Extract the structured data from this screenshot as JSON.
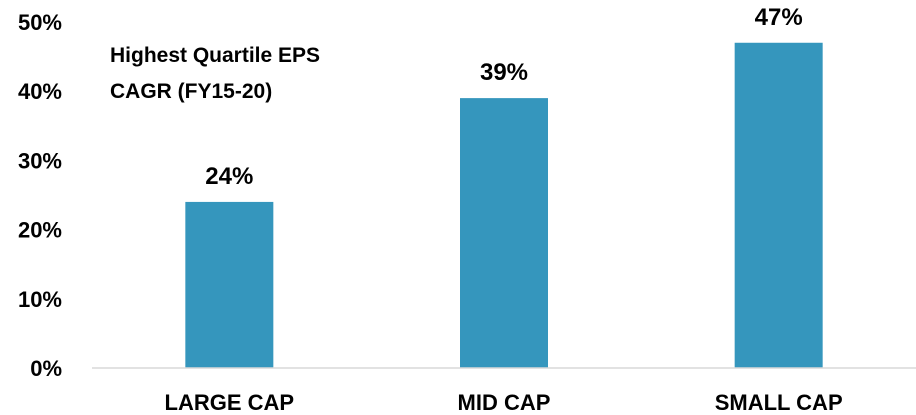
{
  "chart_data": {
    "type": "bar",
    "title_lines": [
      "Highest Quartile EPS",
      "CAGR (FY15-20)"
    ],
    "categories": [
      "LARGE CAP",
      "MID CAP",
      "SMALL CAP"
    ],
    "values": [
      24,
      39,
      47
    ],
    "data_labels": [
      "24%",
      "39%",
      "47%"
    ],
    "y_ticks": [
      {
        "value": 0,
        "label": "0%"
      },
      {
        "value": 10,
        "label": "10%"
      },
      {
        "value": 20,
        "label": "20%"
      },
      {
        "value": 30,
        "label": "30%"
      },
      {
        "value": 40,
        "label": "40%"
      },
      {
        "value": 50,
        "label": "50%"
      }
    ],
    "ylim": [
      0,
      50
    ],
    "grid": false,
    "bar_color": "#3596bd",
    "axis_color": "#d9d9d9"
  }
}
